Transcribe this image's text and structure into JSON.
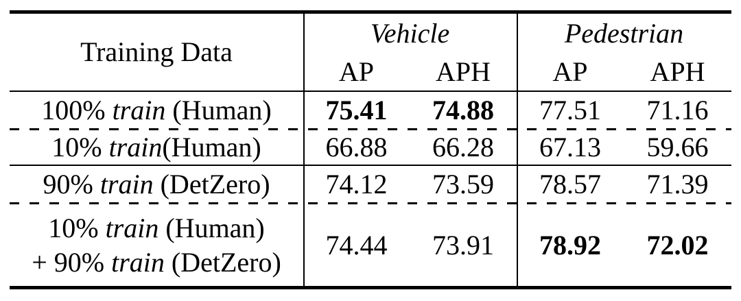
{
  "palette": {
    "text": "#000000",
    "background": "#ffffff",
    "rule": "#000000"
  },
  "table": {
    "header": {
      "row_label": "Training Data",
      "groups": [
        {
          "label": "Vehicle"
        },
        {
          "label": "Pedestrian"
        }
      ],
      "subcolumns": [
        "AP",
        "APH",
        "AP",
        "APH"
      ]
    },
    "rows": [
      {
        "label": [
          "100% ",
          "train",
          " (Human)"
        ],
        "values": [
          "75.41",
          "74.88",
          "77.51",
          "71.16"
        ],
        "bold": [
          true,
          true,
          false,
          false
        ]
      },
      {
        "label": [
          "10% ",
          "train",
          "(Human)"
        ],
        "values": [
          "66.88",
          "66.28",
          "67.13",
          "59.66"
        ],
        "bold": [
          false,
          false,
          false,
          false
        ]
      },
      {
        "label": [
          "90% ",
          "train",
          " (DetZero)"
        ],
        "values": [
          "74.12",
          "73.59",
          "78.57",
          "71.39"
        ],
        "bold": [
          false,
          false,
          false,
          false
        ]
      },
      {
        "label_line1": [
          "10% ",
          "train",
          " (Human)"
        ],
        "label_line2": [
          "+ 90% ",
          "train",
          " (DetZero)"
        ],
        "values": [
          "74.44",
          "73.91",
          "78.92",
          "72.02"
        ],
        "bold": [
          false,
          false,
          true,
          true
        ]
      }
    ]
  },
  "chart_data": {
    "type": "table",
    "columns": [
      "Training Data",
      "Vehicle AP",
      "Vehicle APH",
      "Pedestrian AP",
      "Pedestrian APH"
    ],
    "rows": [
      [
        "100% train (Human)",
        75.41,
        74.88,
        77.51,
        71.16
      ],
      [
        "10% train(Human)",
        66.88,
        66.28,
        67.13,
        59.66
      ],
      [
        "90% train (DetZero)",
        74.12,
        73.59,
        78.57,
        71.39
      ],
      [
        "10% train (Human) + 90% train (DetZero)",
        74.44,
        73.91,
        78.92,
        72.02
      ]
    ],
    "bold_cells": [
      [
        0,
        1
      ],
      [
        0,
        2
      ],
      [
        3,
        3
      ],
      [
        3,
        4
      ]
    ]
  }
}
